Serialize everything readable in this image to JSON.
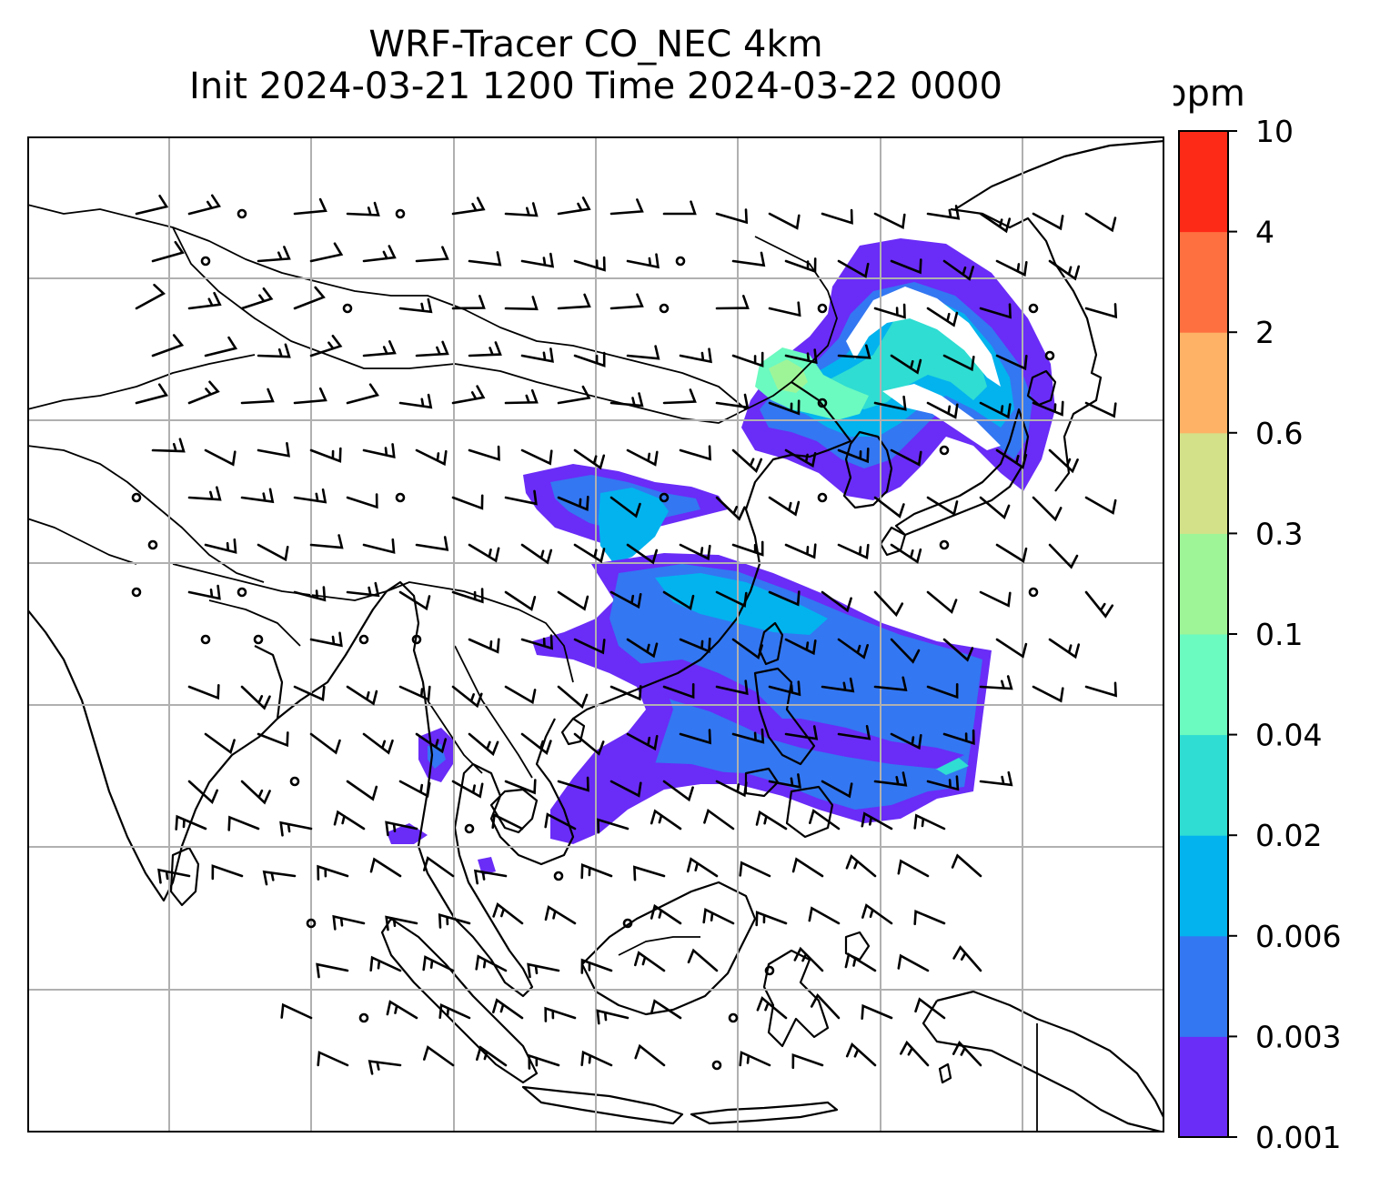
{
  "title": {
    "line1": "WRF-Tracer CO_NEC 4km",
    "line2": "Init 2024-03-21 1200 Time 2024-03-22 0000"
  },
  "colorbar": {
    "unit": "ppm",
    "levels": [
      "0.001",
      "0.003",
      "0.006",
      "0.02",
      "0.04",
      "0.1",
      "0.3",
      "0.6",
      "2",
      "4",
      "10"
    ],
    "colors": [
      "#6a2cf7",
      "#3377f2",
      "#03b3ee",
      "#2fddd2",
      "#6bfac0",
      "#9ef598",
      "#d3e189",
      "#fdb266",
      "#fe7040",
      "#fe2a18"
    ]
  },
  "map": {
    "gridlines": true,
    "features": [
      "coastlines",
      "country-borders",
      "wind-barbs",
      "CO-tracer-concentration"
    ],
    "plumes": [
      {
        "id": "northeast-asia",
        "levels": [
          0,
          1,
          2,
          3,
          4,
          5
        ]
      },
      {
        "id": "east-china-sea",
        "levels": [
          0,
          1,
          2
        ]
      },
      {
        "id": "south-china-pacific",
        "levels": [
          0,
          1,
          2,
          3
        ]
      },
      {
        "id": "indochina",
        "levels": [
          0,
          1
        ]
      }
    ]
  }
}
